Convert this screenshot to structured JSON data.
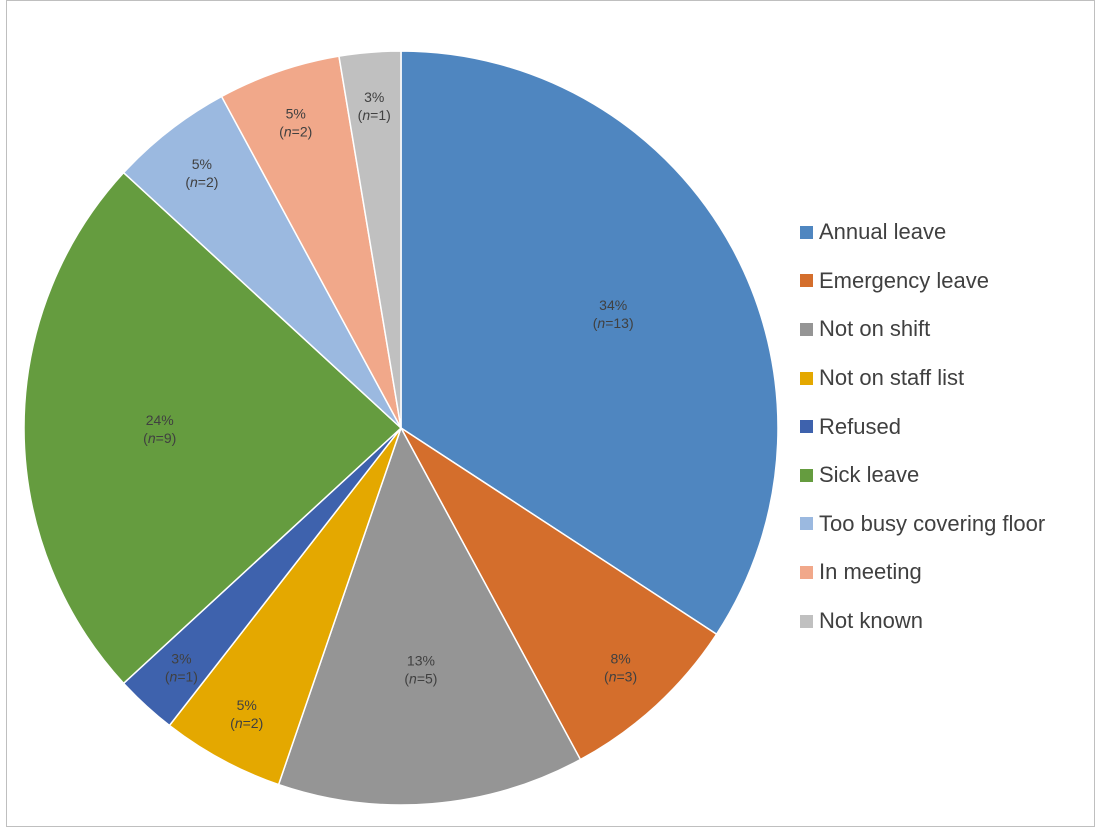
{
  "chart_data": {
    "type": "pie",
    "title": "",
    "start_angle_deg": 0,
    "direction": "clockwise",
    "legend_position": "right",
    "slices": [
      {
        "name": "Annual leave",
        "value": 13,
        "percent_label": "34%",
        "n_value": "13",
        "color": "#4f86c0"
      },
      {
        "name": "Emergency leave",
        "value": 3,
        "percent_label": "8%",
        "n_value": "3",
        "color": "#d46e2c"
      },
      {
        "name": "Not on shift",
        "value": 5,
        "percent_label": "13%",
        "n_value": "5",
        "color": "#959595"
      },
      {
        "name": "Not on staff list",
        "value": 2,
        "percent_label": "5%",
        "n_value": "2",
        "color": "#e4a800"
      },
      {
        "name": "Refused",
        "value": 1,
        "percent_label": "3%",
        "n_value": "1",
        "color": "#3e62ad"
      },
      {
        "name": "Sick leave",
        "value": 9,
        "percent_label": "24%",
        "n_value": "9",
        "color": "#659c3f"
      },
      {
        "name": "Too busy covering floor",
        "value": 2,
        "percent_label": "5%",
        "n_value": "2",
        "color": "#9bb9e0"
      },
      {
        "name": "In meeting",
        "value": 2,
        "percent_label": "5%",
        "n_value": "2",
        "color": "#f1a88a"
      },
      {
        "name": "Not known",
        "value": 1,
        "percent_label": "3%",
        "n_value": "1",
        "color": "#c0c0c0"
      }
    ]
  }
}
